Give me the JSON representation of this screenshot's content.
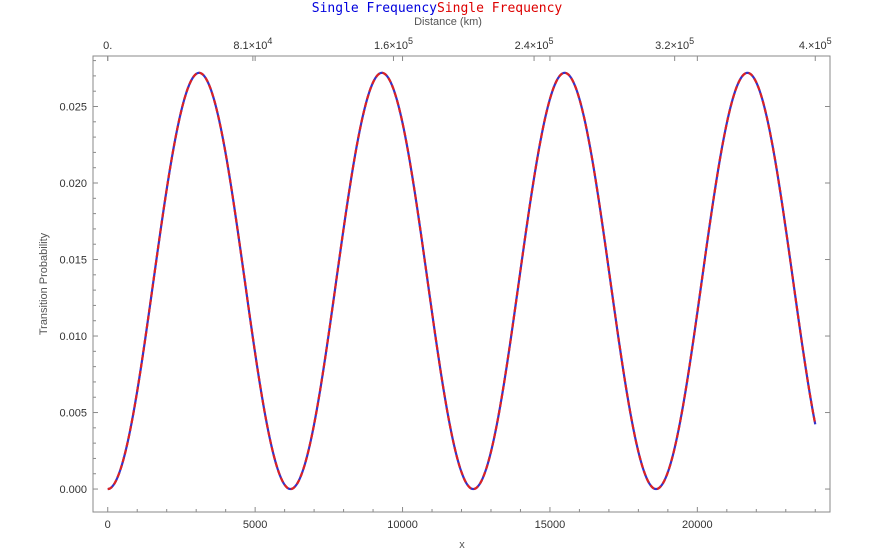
{
  "chart_data": {
    "type": "line",
    "title_parts": [
      {
        "text": "Single Frequency",
        "color": "#0000dd"
      },
      {
        "text": "Single Frequency",
        "color": "#dd0000"
      }
    ],
    "xlabel": "x",
    "ylabel": "Transition Probability",
    "top_axis_label": "Distance (km)",
    "xlim": [
      -500,
      24500
    ],
    "ylim": [
      -0.0015,
      0.0283
    ],
    "x_ticks": [
      "0",
      "5000",
      "10000",
      "15000",
      "20000"
    ],
    "x_tick_values": [
      0,
      5000,
      10000,
      15000,
      20000
    ],
    "y_ticks": [
      "0.000",
      "0.005",
      "0.010",
      "0.015",
      "0.020",
      "0.025"
    ],
    "y_tick_values": [
      0,
      0.005,
      0.01,
      0.015,
      0.02,
      0.025
    ],
    "top_ticks": [
      {
        "value": 0,
        "mantissa": "0.",
        "exponent": ""
      },
      {
        "value": 6400,
        "mantissa": "8.1×10",
        "exponent": "4"
      },
      {
        "value": 12600,
        "mantissa": "1.6×10",
        "exponent": "5"
      },
      {
        "value": 18800,
        "mantissa": "2.4×10",
        "exponent": "5"
      },
      {
        "value": 25000,
        "mantissa": "3.2×10",
        "exponent": "5"
      },
      {
        "value": 31200,
        "mantissa": "4.×10",
        "exponent": "5"
      }
    ],
    "series": [
      {
        "color": "#3333cc",
        "style": "solid",
        "x_range": [
          0,
          24000
        ],
        "amplitude": 0.0272,
        "period": 6200
      },
      {
        "color": "#dd2222",
        "style": "dashed",
        "x_range": [
          0,
          24000
        ],
        "amplitude": 0.0272,
        "period": 6200
      }
    ],
    "grid": false
  }
}
